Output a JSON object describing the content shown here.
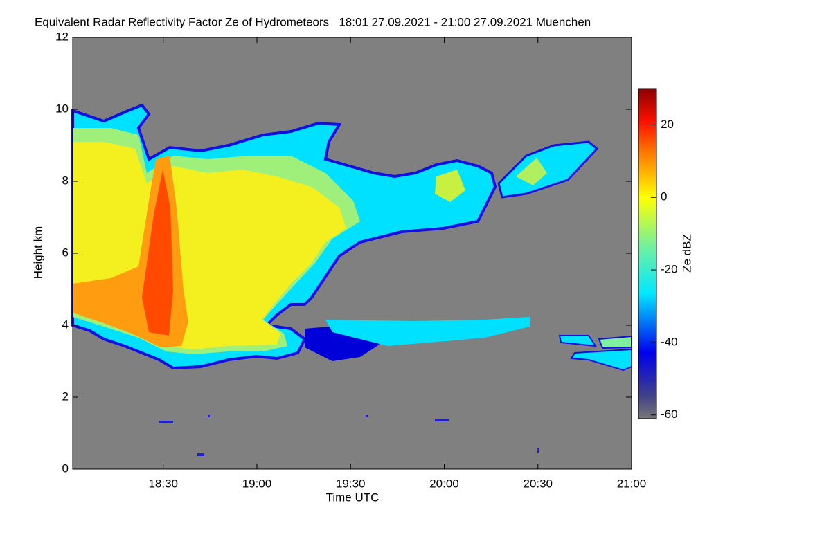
{
  "chart_data": {
    "type": "heatmap",
    "title": "Equivalent Radar Reflectivity Factor Ze of Hydrometeors   18:01 27.09.2021 - 21:00 27.09.2021 Muenchen",
    "x_label": "Time UTC",
    "y_label": "Height km",
    "colorbar_label": "Ze dBZ",
    "xlim": [
      1,
      180
    ],
    "xticks": [
      {
        "value": 30,
        "label": "18:30"
      },
      {
        "value": 60,
        "label": "19:00"
      },
      {
        "value": 90,
        "label": "19:30"
      },
      {
        "value": 120,
        "label": "20:00"
      },
      {
        "value": 150,
        "label": "20:30"
      },
      {
        "value": 180,
        "label": "21:00"
      }
    ],
    "ylim": [
      0,
      12
    ],
    "yticks": [
      0,
      2,
      4,
      6,
      8,
      10,
      12
    ],
    "clim": [
      -61,
      30
    ],
    "cticks": [
      -60,
      -40,
      -20,
      0,
      20
    ]
  }
}
